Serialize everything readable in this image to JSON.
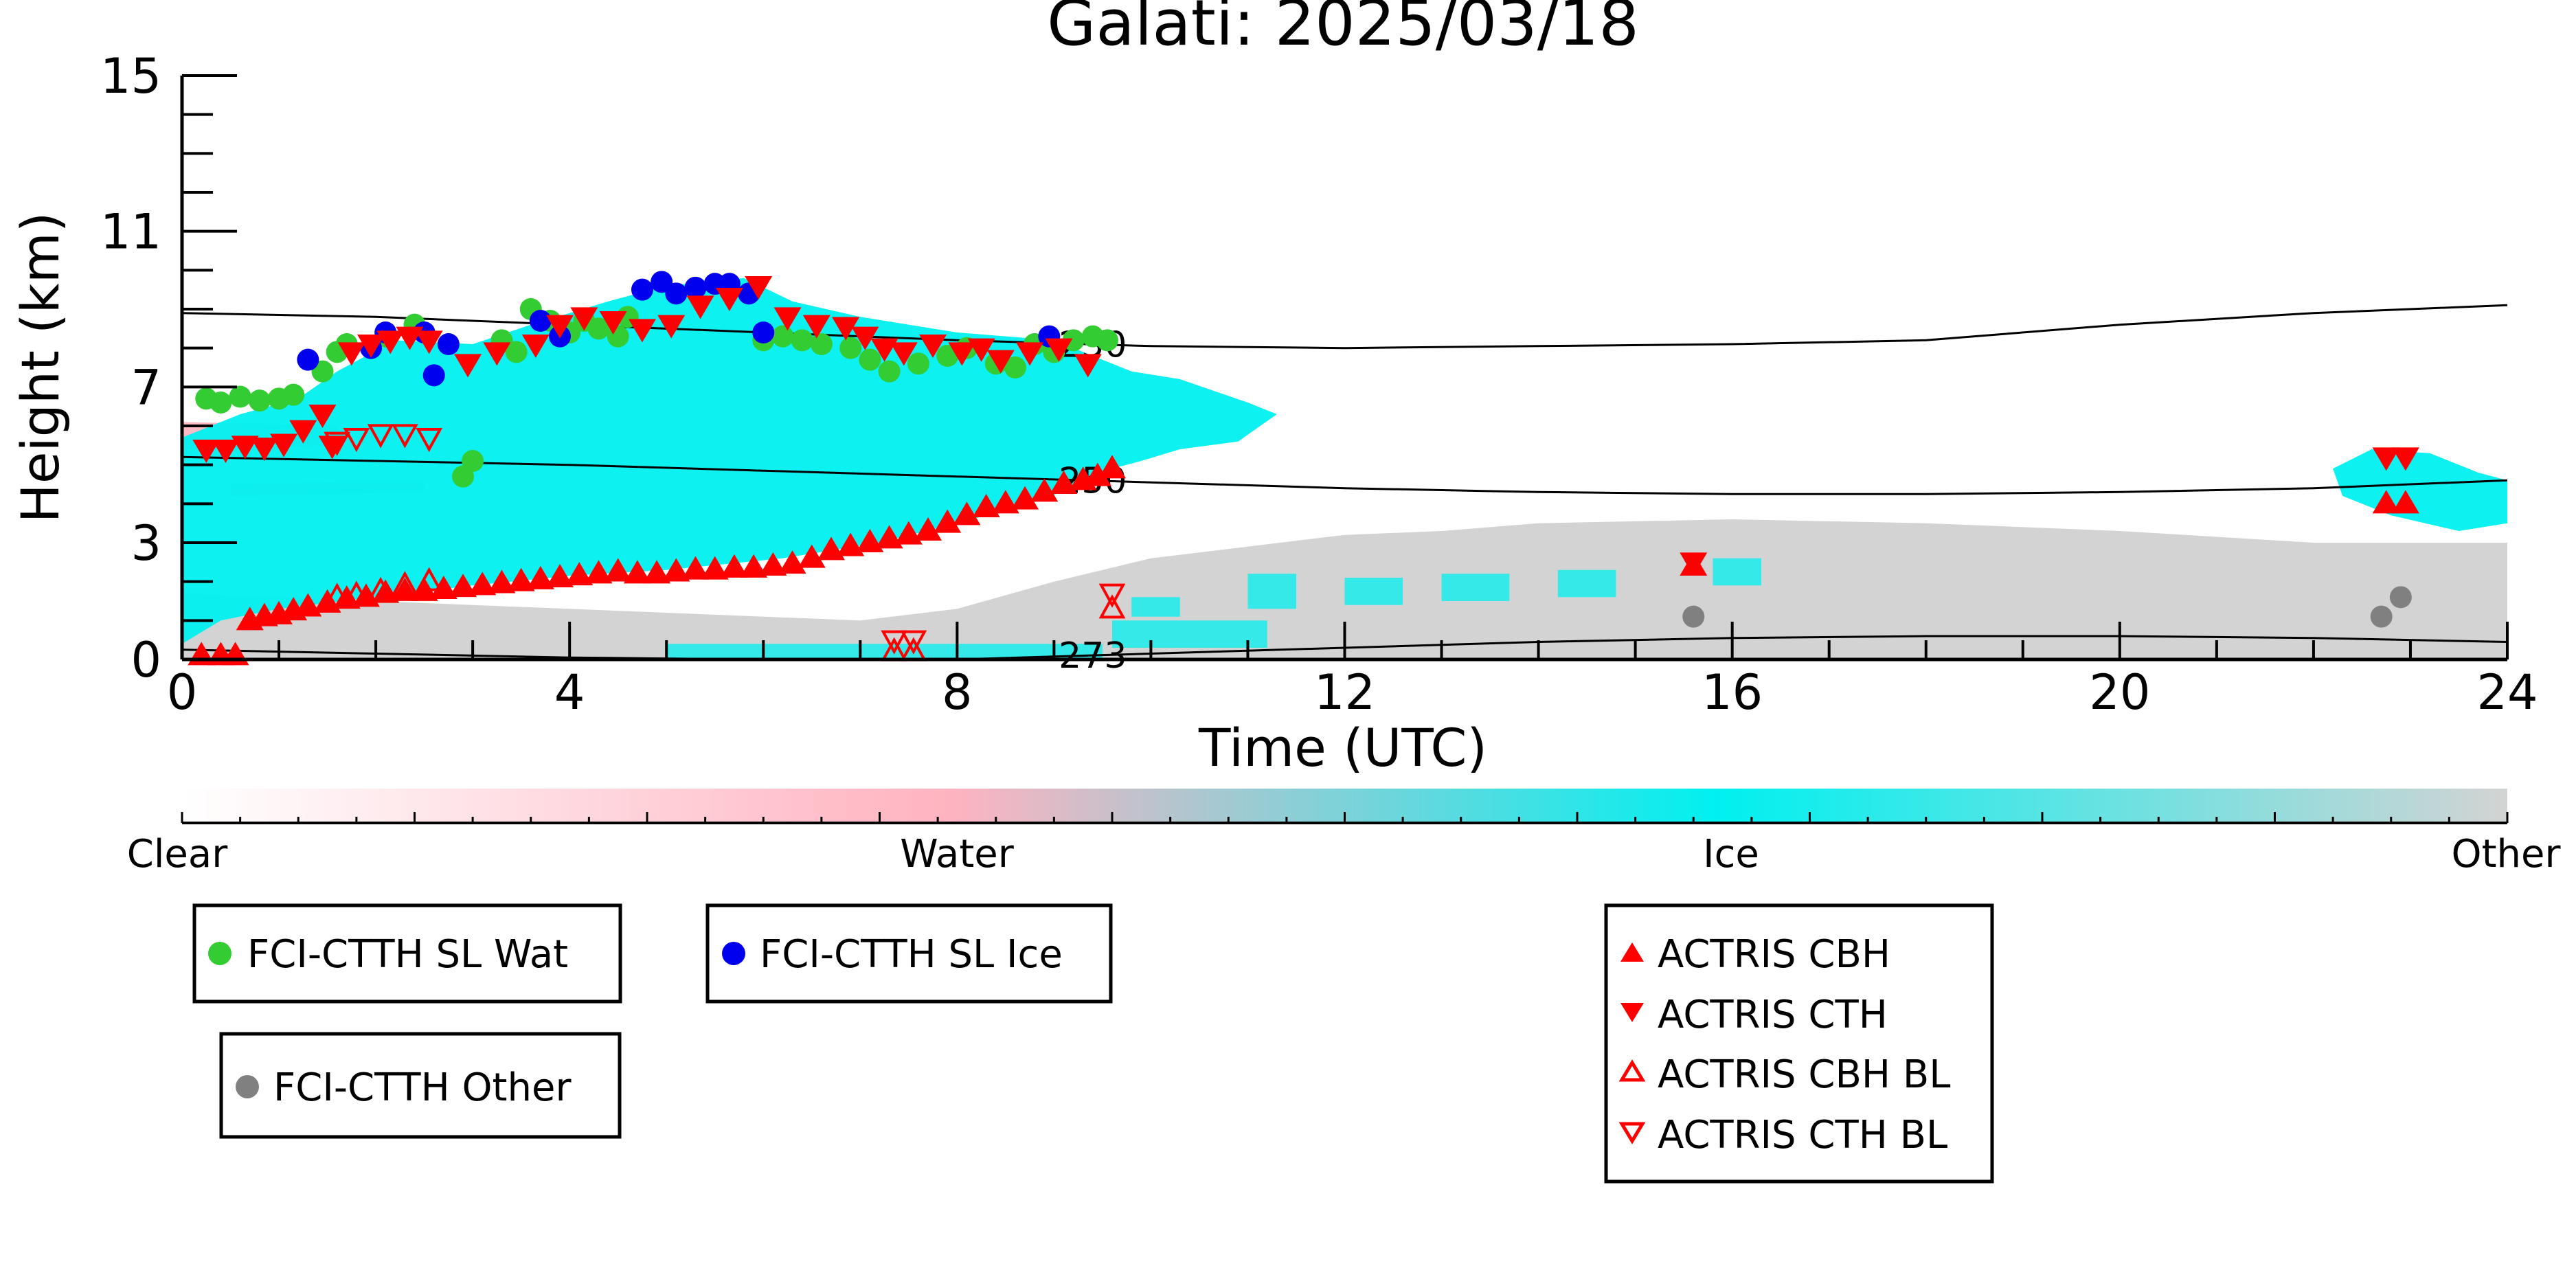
{
  "chart_data": {
    "type": "scatter",
    "title": "Galati: 2025/03/18",
    "xlabel": "Time (UTC)",
    "ylabel": "Height (km)",
    "xlim": [
      0,
      24
    ],
    "ylim": [
      0,
      15
    ],
    "x_ticks": [
      "0",
      "4",
      "8",
      "12",
      "16",
      "20",
      "24"
    ],
    "y_ticks": [
      "0",
      "3",
      "7",
      "11",
      "15"
    ],
    "grid": false,
    "colors": {
      "clear": "#ffffff",
      "water": "#ffb3c0",
      "ice": "#00f0f0",
      "other": "#d3d3d3",
      "fci_water": "#33cc33",
      "fci_ice": "#0000ee",
      "fci_other": "#808080",
      "actris": "#ff0000"
    },
    "colorbar_labels": [
      "Clear",
      "Water",
      "Ice",
      "Other"
    ],
    "isotherms": [
      {
        "label": "230",
        "label_x": 9.4,
        "x": [
          0,
          2,
          4,
          6,
          8,
          10,
          12,
          14,
          16,
          18,
          20,
          22,
          24
        ],
        "y": [
          8.9,
          8.8,
          8.6,
          8.4,
          8.2,
          8.05,
          8.0,
          8.05,
          8.1,
          8.2,
          8.6,
          8.9,
          9.1
        ]
      },
      {
        "label": "250",
        "label_x": 9.4,
        "x": [
          0,
          2,
          4,
          6,
          8,
          10,
          12,
          14,
          16,
          18,
          20,
          22,
          24
        ],
        "y": [
          5.2,
          5.1,
          5.0,
          4.85,
          4.7,
          4.55,
          4.4,
          4.3,
          4.25,
          4.25,
          4.3,
          4.4,
          4.6
        ]
      },
      {
        "label": "273",
        "label_x": 9.4,
        "x": [
          0,
          2,
          4,
          6,
          8,
          10,
          12,
          14,
          16,
          18,
          20,
          22,
          24
        ],
        "y": [
          0.25,
          0.15,
          0.05,
          0.0,
          0.0,
          0.15,
          0.3,
          0.45,
          0.55,
          0.6,
          0.6,
          0.55,
          0.45
        ]
      }
    ],
    "series": [
      {
        "name": "FCI-CTTH SL Wat",
        "marker": "circle",
        "color": "#33cc33",
        "x": [
          0.25,
          0.4,
          0.6,
          0.8,
          1.0,
          1.15,
          1.45,
          1.6,
          1.7,
          2.1,
          2.4,
          2.9,
          3.0,
          3.3,
          3.45,
          3.6,
          3.8,
          4.0,
          4.15,
          4.3,
          4.5,
          4.6,
          6.0,
          6.2,
          6.4,
          6.6,
          6.9,
          7.1,
          7.3,
          7.6,
          7.9,
          8.1,
          8.4,
          8.6,
          8.8,
          9.0,
          9.2,
          9.4,
          9.55
        ],
        "y": [
          6.7,
          6.6,
          6.75,
          6.65,
          6.7,
          6.8,
          7.4,
          7.9,
          8.1,
          8.3,
          8.6,
          4.7,
          5.1,
          8.2,
          7.9,
          9.0,
          8.7,
          8.4,
          8.7,
          8.5,
          8.3,
          8.8,
          8.2,
          8.3,
          8.2,
          8.1,
          8.0,
          7.7,
          7.4,
          7.6,
          7.8,
          8.0,
          7.6,
          7.5,
          8.1,
          7.9,
          8.2,
          8.3,
          8.2
        ]
      },
      {
        "name": "FCI-CTTH SL Ice",
        "marker": "circle",
        "color": "#0000ee",
        "x": [
          1.3,
          1.95,
          2.1,
          2.5,
          2.6,
          2.75,
          3.7,
          3.9,
          4.75,
          4.95,
          5.1,
          5.3,
          5.5,
          5.65,
          5.85,
          6.0,
          8.95
        ],
        "y": [
          7.7,
          8.0,
          8.4,
          8.4,
          7.3,
          8.1,
          8.7,
          8.3,
          9.5,
          9.7,
          9.4,
          9.55,
          9.65,
          9.65,
          9.4,
          8.4,
          8.3
        ]
      },
      {
        "name": "FCI-CTTH Other",
        "marker": "circle",
        "color": "#808080",
        "x": [
          15.6,
          22.7,
          22.9
        ],
        "y": [
          1.1,
          1.1,
          1.6
        ]
      },
      {
        "name": "ACTRIS CBH",
        "marker": "triangle-up",
        "color": "#ff0000",
        "x": [
          0.2,
          0.4,
          0.55,
          0.7,
          0.85,
          1.0,
          1.15,
          1.3,
          1.5,
          1.7,
          1.9,
          2.1,
          2.3,
          2.5,
          2.7,
          2.9,
          3.1,
          3.3,
          3.5,
          3.7,
          3.9,
          4.1,
          4.3,
          4.5,
          4.7,
          4.9,
          5.1,
          5.3,
          5.5,
          5.7,
          5.9,
          6.1,
          6.3,
          6.5,
          6.7,
          6.9,
          7.1,
          7.3,
          7.5,
          7.7,
          7.9,
          8.1,
          8.3,
          8.5,
          8.7,
          8.9,
          9.1,
          9.3,
          9.45,
          9.6,
          15.6,
          22.75,
          22.95
        ],
        "y": [
          0.1,
          0.1,
          0.1,
          1.0,
          1.1,
          1.15,
          1.25,
          1.35,
          1.45,
          1.55,
          1.6,
          1.7,
          1.75,
          1.75,
          1.8,
          1.85,
          1.9,
          1.95,
          2.0,
          2.05,
          2.1,
          2.15,
          2.2,
          2.25,
          2.2,
          2.2,
          2.25,
          2.3,
          2.3,
          2.35,
          2.35,
          2.4,
          2.45,
          2.6,
          2.8,
          2.9,
          3.0,
          3.1,
          3.2,
          3.3,
          3.5,
          3.7,
          3.9,
          4.0,
          4.1,
          4.3,
          4.5,
          4.6,
          4.7,
          4.9,
          2.4,
          4.0,
          4.0
        ]
      },
      {
        "name": "ACTRIS CTH",
        "marker": "triangle-down",
        "color": "#ff0000",
        "x": [
          0.25,
          0.45,
          0.65,
          0.85,
          1.05,
          1.25,
          1.45,
          1.55,
          1.75,
          1.95,
          2.15,
          2.35,
          2.55,
          2.95,
          3.25,
          3.65,
          3.9,
          4.15,
          4.45,
          4.75,
          5.05,
          5.35,
          5.65,
          5.95,
          6.25,
          6.55,
          6.85,
          7.05,
          7.25,
          7.45,
          7.75,
          8.05,
          8.25,
          8.45,
          8.75,
          9.05,
          9.35,
          15.6,
          22.75,
          22.95
        ],
        "y": [
          5.4,
          5.4,
          5.5,
          5.45,
          5.55,
          5.9,
          6.3,
          5.5,
          7.9,
          8.1,
          8.2,
          8.3,
          8.2,
          7.6,
          7.9,
          8.1,
          8.6,
          8.8,
          8.7,
          8.5,
          8.6,
          9.1,
          9.3,
          9.6,
          8.8,
          8.6,
          8.55,
          8.3,
          8.0,
          7.9,
          8.1,
          7.9,
          8.0,
          7.7,
          7.9,
          8.0,
          7.6,
          2.5,
          5.2,
          5.2
        ]
      },
      {
        "name": "ACTRIS CBH BL",
        "marker": "triangle-up-open",
        "color": "#ff0000",
        "x": [
          1.6,
          1.8,
          2.05,
          2.3,
          2.55,
          7.35,
          7.55,
          9.6
        ],
        "y": [
          1.6,
          1.65,
          1.75,
          1.9,
          2.0,
          0.2,
          0.2,
          1.3
        ]
      },
      {
        "name": "ACTRIS CTH BL",
        "marker": "triangle-down-open",
        "color": "#ff0000",
        "x": [
          1.6,
          1.8,
          2.05,
          2.3,
          2.55,
          7.35,
          7.55,
          9.6
        ],
        "y": [
          5.6,
          5.7,
          5.8,
          5.8,
          5.7,
          0.5,
          0.5,
          1.7
        ]
      }
    ],
    "legend_entries": [
      {
        "label": "FCI-CTTH SL Wat",
        "marker": "circle",
        "color": "#33cc33"
      },
      {
        "label": "FCI-CTTH SL Ice",
        "marker": "circle",
        "color": "#0000ee"
      },
      {
        "label": "FCI-CTTH Other",
        "marker": "circle",
        "color": "#808080"
      },
      {
        "label": "ACTRIS CBH",
        "marker": "triangle-up",
        "color": "#ff0000"
      },
      {
        "label": "ACTRIS CTH",
        "marker": "triangle-down",
        "color": "#ff0000"
      },
      {
        "label": "ACTRIS CBH BL",
        "marker": "triangle-up-open",
        "color": "#ff0000"
      },
      {
        "label": "ACTRIS CTH BL",
        "marker": "triangle-down-open",
        "color": "#ff0000"
      }
    ]
  }
}
